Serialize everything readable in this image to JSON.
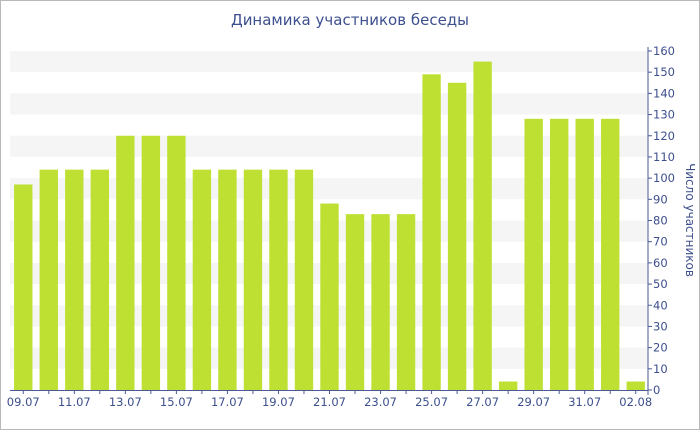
{
  "chart_data": {
    "type": "bar",
    "title": "Динамика участников беседы",
    "ylabel": "Число участников",
    "ylim": [
      0,
      160
    ],
    "yticks": [
      0,
      10,
      20,
      30,
      40,
      50,
      60,
      70,
      80,
      90,
      100,
      110,
      120,
      130,
      140,
      150,
      160
    ],
    "categories": [
      "09.07",
      "10.07",
      "11.07",
      "12.07",
      "13.07",
      "14.07",
      "15.07",
      "16.07",
      "17.07",
      "18.07",
      "19.07",
      "20.07",
      "21.07",
      "22.07",
      "23.07",
      "24.07",
      "25.07",
      "26.07",
      "27.07",
      "28.07",
      "29.07",
      "30.07",
      "31.07",
      "01.08",
      "02.08"
    ],
    "xtick_labels": [
      "09.07",
      "",
      "11.07",
      "",
      "13.07",
      "",
      "15.07",
      "",
      "17.07",
      "",
      "19.07",
      "",
      "21.07",
      "",
      "23.07",
      "",
      "25.07",
      "",
      "27.07",
      "",
      "29.07",
      "",
      "31.07",
      "",
      "02.08"
    ],
    "values": [
      97,
      104,
      104,
      104,
      120,
      120,
      120,
      104,
      104,
      104,
      104,
      104,
      88,
      83,
      83,
      83,
      149,
      145,
      155,
      4,
      128,
      128,
      128,
      128,
      4
    ],
    "bar_color": "#bde032",
    "grid": "horizontal bands",
    "band_color": "#f5f5f5",
    "axis_color": "#4a5a94",
    "text_color": "#3d4f8e"
  }
}
